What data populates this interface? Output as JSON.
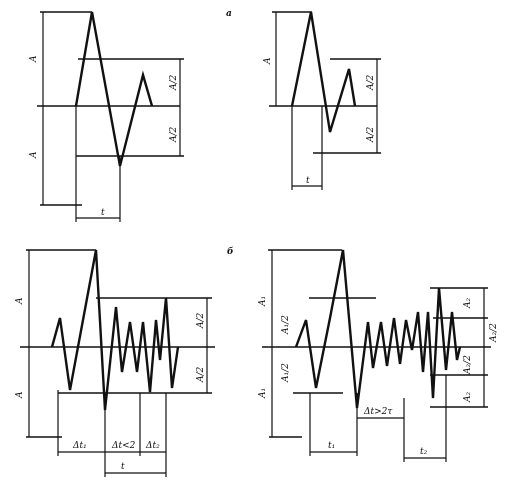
{
  "panel_labels": {
    "top": "a",
    "bottom": "б"
  },
  "top_left": {
    "A_upper": "A",
    "A_lower": "A",
    "half_upper": "A/2",
    "half_lower": "A/2",
    "t": "t"
  },
  "top_right": {
    "A": "A",
    "half_upper": "A/2",
    "half_lower": "A/2",
    "t": "t"
  },
  "bottom_left": {
    "A_upper": "A",
    "A_lower": "A",
    "half_upper": "A/2",
    "half_lower": "A/2",
    "dt1": "Δt₁",
    "dt_lt2": "Δt<2",
    "dt2": "Δt₂",
    "t": "t"
  },
  "bottom_right": {
    "A1_upper": "A₁",
    "A1_lower": "A₁",
    "A1_half_upper": "A₁/2",
    "A1_half_lower": "A₁/2",
    "A2_upper": "A₂",
    "A2_lower": "A₂",
    "A2_half_upper": "A₂/2",
    "A2_half_lower": "A₂/2",
    "dt_gt2t": "Δt>2τ",
    "t1": "t₁",
    "t2": "t₂"
  }
}
